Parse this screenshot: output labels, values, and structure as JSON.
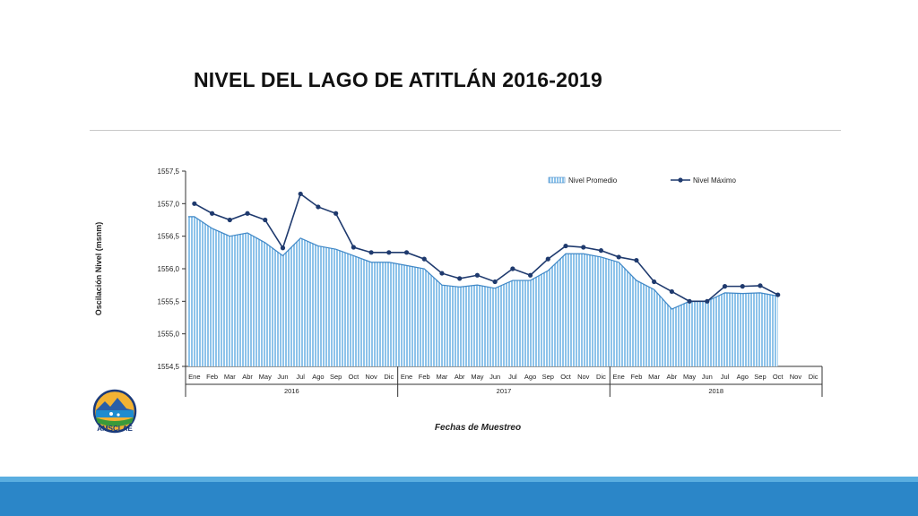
{
  "slide": {
    "title": "NIVEL DEL LAGO DE ATITLÁN 2016-2019",
    "logo_text": "AMSCLAE"
  },
  "colors": {
    "bar_fill": "#8ec3ea",
    "bar_stroke": "#3f87c6",
    "line": "#1f3a6e",
    "marker": "#1f3a6e",
    "axis": "#333333",
    "footer": "#2b86c8",
    "footer_light": "#5aaee0"
  },
  "chart_data": {
    "type": "bar",
    "title": "",
    "ylabel": "Oscilación Nivel (msnm)",
    "xlabel": "Fechas de Muestreo",
    "ylim": [
      1554.5,
      1557.5
    ],
    "y_ticks": [
      "1554,5",
      "1555,0",
      "1555,5",
      "1556,0",
      "1556,5",
      "1557,0",
      "1557,5"
    ],
    "y_tick_values": [
      1554.5,
      1555.0,
      1555.5,
      1556.0,
      1556.5,
      1557.0,
      1557.5
    ],
    "categories": [
      "Ene",
      "Feb",
      "Mar",
      "Abr",
      "May",
      "Jun",
      "Jul",
      "Ago",
      "Sep",
      "Oct",
      "Nov",
      "Dic",
      "Ene",
      "Feb",
      "Mar",
      "Abr",
      "May",
      "Jun",
      "Jul",
      "Ago",
      "Sep",
      "Oct",
      "Nov",
      "Dic",
      "Ene",
      "Feb",
      "Mar",
      "Abr",
      "May",
      "Jun",
      "Jul",
      "Ago",
      "Sep",
      "Oct",
      "Nov",
      "Dic"
    ],
    "groups": [
      {
        "label": "2016",
        "count": 12
      },
      {
        "label": "2017",
        "count": 12
      },
      {
        "label": "2018",
        "count": 12
      }
    ],
    "legend_position": "top-right",
    "series": [
      {
        "name": "Nivel Promedio",
        "type": "area",
        "values": [
          1556.8,
          1556.62,
          1556.5,
          1556.55,
          1556.4,
          1556.2,
          1556.47,
          1556.35,
          1556.3,
          1556.2,
          1556.1,
          1556.1,
          1556.05,
          1556.0,
          1555.75,
          1555.72,
          1555.75,
          1555.7,
          1555.82,
          1555.82,
          1555.97,
          1556.23,
          1556.23,
          1556.18,
          1556.1,
          1555.82,
          1555.68,
          1555.38,
          1555.5,
          1555.5,
          1555.63,
          1555.62,
          1555.63,
          1555.58,
          null,
          null
        ]
      },
      {
        "name": "Nivel Máximo",
        "type": "line",
        "values": [
          1557.0,
          1556.85,
          1556.75,
          1556.85,
          1556.75,
          1556.32,
          1557.15,
          1556.95,
          1556.85,
          1556.33,
          1556.25,
          1556.25,
          1556.25,
          1556.15,
          1555.93,
          1555.85,
          1555.9,
          1555.8,
          1556.0,
          1555.9,
          1556.15,
          1556.35,
          1556.33,
          1556.28,
          1556.18,
          1556.13,
          1555.8,
          1555.65,
          1555.5,
          1555.5,
          1555.73,
          1555.73,
          1555.74,
          1555.6,
          null,
          null
        ]
      }
    ]
  }
}
